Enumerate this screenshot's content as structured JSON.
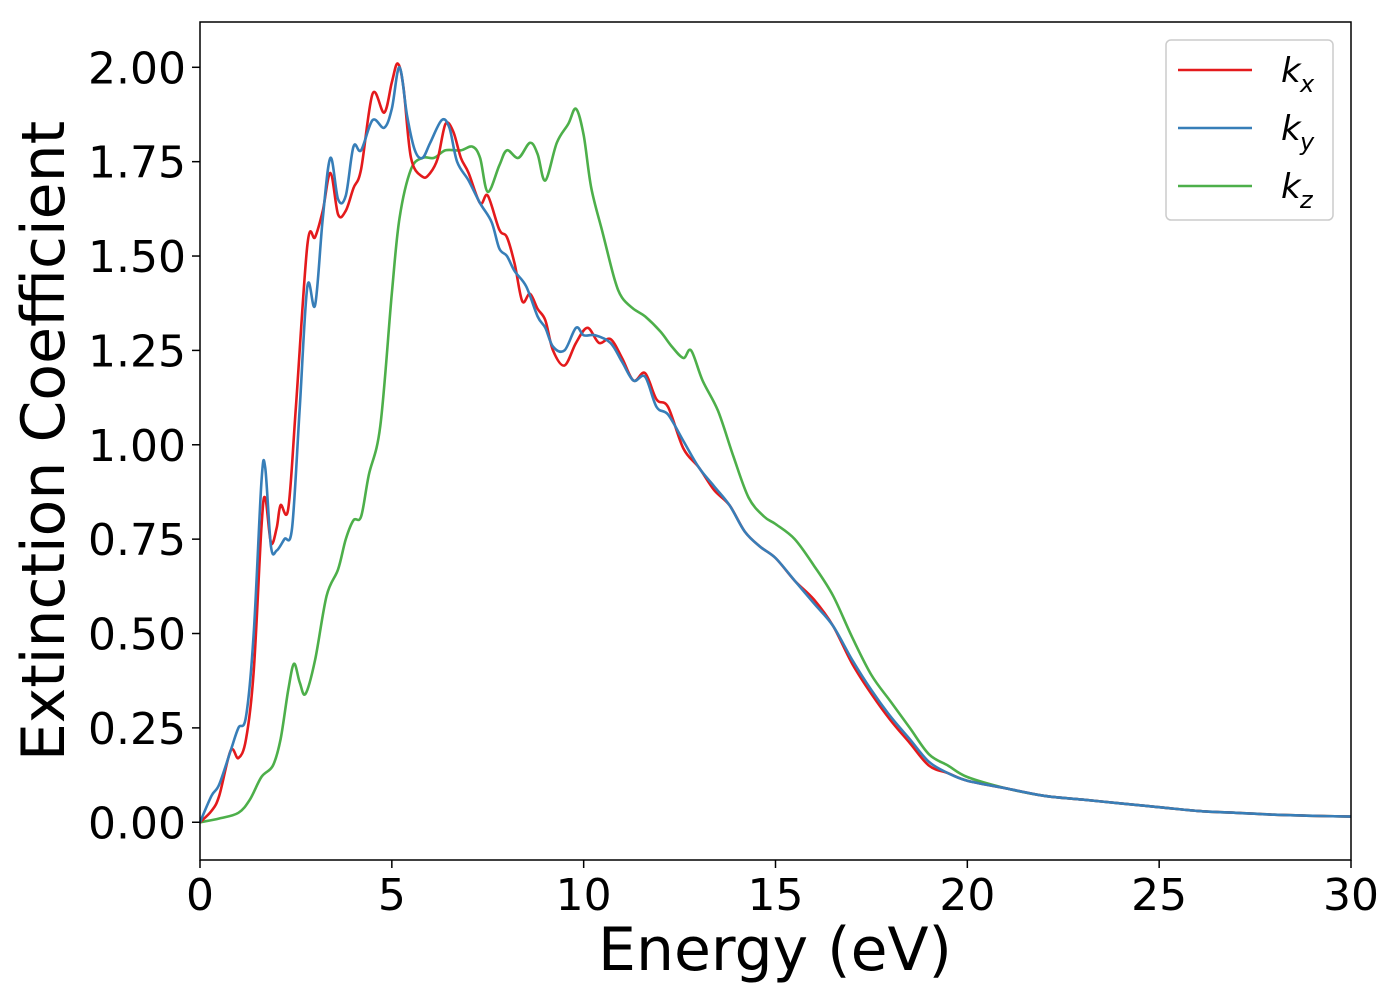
{
  "chart_data": {
    "type": "line",
    "xlabel": "Energy (eV)",
    "ylabel": "Extinction Coefficient",
    "xlim": [
      0,
      30
    ],
    "ylim": [
      -0.1,
      2.12
    ],
    "xticks": [
      0,
      5,
      10,
      15,
      20,
      25,
      30
    ],
    "xtick_labels": [
      "0",
      "5",
      "10",
      "15",
      "20",
      "25",
      "30"
    ],
    "yticks": [
      0,
      0.25,
      0.5,
      0.75,
      1.0,
      1.25,
      1.5,
      1.75,
      2.0
    ],
    "ytick_labels": [
      "0.00",
      "0.25",
      "0.50",
      "0.75",
      "1.00",
      "1.25",
      "1.50",
      "1.75",
      "2.00"
    ],
    "grid": false,
    "legend_position": "top-right",
    "series": [
      {
        "name": "k",
        "subscript": "x",
        "color": "#e41a1c",
        "points": [
          [
            0,
            0
          ],
          [
            0.3,
            0.03
          ],
          [
            0.5,
            0.07
          ],
          [
            0.8,
            0.19
          ],
          [
            1.0,
            0.17
          ],
          [
            1.2,
            0.22
          ],
          [
            1.4,
            0.4
          ],
          [
            1.6,
            0.78
          ],
          [
            1.7,
            0.86
          ],
          [
            1.85,
            0.74
          ],
          [
            2.0,
            0.78
          ],
          [
            2.1,
            0.84
          ],
          [
            2.3,
            0.83
          ],
          [
            2.5,
            1.1
          ],
          [
            2.8,
            1.53
          ],
          [
            3.0,
            1.55
          ],
          [
            3.2,
            1.62
          ],
          [
            3.4,
            1.72
          ],
          [
            3.6,
            1.61
          ],
          [
            3.8,
            1.62
          ],
          [
            4.0,
            1.68
          ],
          [
            4.2,
            1.73
          ],
          [
            4.5,
            1.93
          ],
          [
            4.8,
            1.88
          ],
          [
            5.0,
            1.96
          ],
          [
            5.15,
            2.01
          ],
          [
            5.3,
            1.95
          ],
          [
            5.5,
            1.76
          ],
          [
            5.8,
            1.71
          ],
          [
            6.0,
            1.72
          ],
          [
            6.2,
            1.76
          ],
          [
            6.4,
            1.85
          ],
          [
            6.6,
            1.83
          ],
          [
            6.8,
            1.76
          ],
          [
            7.0,
            1.72
          ],
          [
            7.3,
            1.64
          ],
          [
            7.5,
            1.66
          ],
          [
            7.8,
            1.57
          ],
          [
            8.0,
            1.55
          ],
          [
            8.2,
            1.48
          ],
          [
            8.4,
            1.38
          ],
          [
            8.6,
            1.4
          ],
          [
            8.8,
            1.36
          ],
          [
            9.0,
            1.33
          ],
          [
            9.2,
            1.25
          ],
          [
            9.5,
            1.21
          ],
          [
            9.8,
            1.27
          ],
          [
            10.1,
            1.31
          ],
          [
            10.4,
            1.27
          ],
          [
            10.7,
            1.28
          ],
          [
            11.0,
            1.23
          ],
          [
            11.3,
            1.17
          ],
          [
            11.6,
            1.19
          ],
          [
            11.9,
            1.12
          ],
          [
            12.2,
            1.1
          ],
          [
            12.6,
            0.99
          ],
          [
            13.0,
            0.94
          ],
          [
            13.4,
            0.88
          ],
          [
            13.8,
            0.84
          ],
          [
            14.2,
            0.77
          ],
          [
            14.6,
            0.73
          ],
          [
            15.0,
            0.7
          ],
          [
            15.5,
            0.64
          ],
          [
            16.0,
            0.59
          ],
          [
            16.5,
            0.52
          ],
          [
            17.0,
            0.42
          ],
          [
            17.5,
            0.34
          ],
          [
            18.0,
            0.27
          ],
          [
            18.5,
            0.21
          ],
          [
            19.0,
            0.15
          ],
          [
            19.5,
            0.13
          ],
          [
            20.0,
            0.11
          ],
          [
            21.0,
            0.09
          ],
          [
            22.0,
            0.07
          ],
          [
            23.0,
            0.06
          ],
          [
            24.0,
            0.05
          ],
          [
            25.0,
            0.04
          ],
          [
            26.0,
            0.03
          ],
          [
            27.0,
            0.025
          ],
          [
            28.0,
            0.02
          ],
          [
            29.0,
            0.017
          ],
          [
            30.0,
            0.015
          ]
        ]
      },
      {
        "name": "k",
        "subscript": "y",
        "color": "#377eb8",
        "points": [
          [
            0,
            0
          ],
          [
            0.3,
            0.07
          ],
          [
            0.5,
            0.1
          ],
          [
            0.8,
            0.19
          ],
          [
            1.0,
            0.25
          ],
          [
            1.2,
            0.28
          ],
          [
            1.4,
            0.5
          ],
          [
            1.6,
            0.9
          ],
          [
            1.7,
            0.94
          ],
          [
            1.85,
            0.73
          ],
          [
            2.0,
            0.72
          ],
          [
            2.2,
            0.75
          ],
          [
            2.4,
            0.78
          ],
          [
            2.6,
            1.1
          ],
          [
            2.8,
            1.42
          ],
          [
            3.0,
            1.37
          ],
          [
            3.2,
            1.6
          ],
          [
            3.4,
            1.76
          ],
          [
            3.6,
            1.65
          ],
          [
            3.8,
            1.66
          ],
          [
            4.0,
            1.79
          ],
          [
            4.2,
            1.78
          ],
          [
            4.5,
            1.86
          ],
          [
            4.8,
            1.84
          ],
          [
            5.0,
            1.89
          ],
          [
            5.2,
            2.0
          ],
          [
            5.4,
            1.87
          ],
          [
            5.6,
            1.78
          ],
          [
            5.8,
            1.76
          ],
          [
            6.0,
            1.8
          ],
          [
            6.3,
            1.86
          ],
          [
            6.5,
            1.84
          ],
          [
            6.7,
            1.75
          ],
          [
            7.0,
            1.7
          ],
          [
            7.3,
            1.64
          ],
          [
            7.6,
            1.59
          ],
          [
            7.8,
            1.52
          ],
          [
            8.0,
            1.5
          ],
          [
            8.2,
            1.46
          ],
          [
            8.5,
            1.42
          ],
          [
            8.8,
            1.34
          ],
          [
            9.0,
            1.31
          ],
          [
            9.2,
            1.26
          ],
          [
            9.5,
            1.25
          ],
          [
            9.8,
            1.31
          ],
          [
            10.0,
            1.29
          ],
          [
            10.3,
            1.29
          ],
          [
            10.7,
            1.27
          ],
          [
            11.0,
            1.22
          ],
          [
            11.3,
            1.17
          ],
          [
            11.6,
            1.18
          ],
          [
            11.9,
            1.1
          ],
          [
            12.2,
            1.08
          ],
          [
            12.6,
            1.01
          ],
          [
            13.0,
            0.94
          ],
          [
            13.4,
            0.89
          ],
          [
            13.8,
            0.84
          ],
          [
            14.2,
            0.77
          ],
          [
            14.6,
            0.73
          ],
          [
            15.0,
            0.7
          ],
          [
            15.5,
            0.64
          ],
          [
            16.0,
            0.58
          ],
          [
            16.5,
            0.52
          ],
          [
            17.0,
            0.43
          ],
          [
            17.5,
            0.35
          ],
          [
            18.0,
            0.28
          ],
          [
            18.5,
            0.22
          ],
          [
            19.0,
            0.16
          ],
          [
            19.5,
            0.13
          ],
          [
            20.0,
            0.11
          ],
          [
            21.0,
            0.09
          ],
          [
            22.0,
            0.07
          ],
          [
            23.0,
            0.06
          ],
          [
            24.0,
            0.05
          ],
          [
            25.0,
            0.04
          ],
          [
            26.0,
            0.03
          ],
          [
            27.0,
            0.025
          ],
          [
            28.0,
            0.02
          ],
          [
            29.0,
            0.017
          ],
          [
            30.0,
            0.015
          ]
        ]
      },
      {
        "name": "k",
        "subscript": "z",
        "color": "#4daf4a",
        "points": [
          [
            0,
            0
          ],
          [
            0.5,
            0.01
          ],
          [
            1.0,
            0.025
          ],
          [
            1.3,
            0.06
          ],
          [
            1.6,
            0.12
          ],
          [
            1.9,
            0.15
          ],
          [
            2.1,
            0.22
          ],
          [
            2.3,
            0.35
          ],
          [
            2.45,
            0.42
          ],
          [
            2.6,
            0.37
          ],
          [
            2.75,
            0.34
          ],
          [
            3.0,
            0.43
          ],
          [
            3.3,
            0.6
          ],
          [
            3.6,
            0.67
          ],
          [
            3.8,
            0.75
          ],
          [
            4.0,
            0.8
          ],
          [
            4.2,
            0.81
          ],
          [
            4.4,
            0.92
          ],
          [
            4.7,
            1.05
          ],
          [
            5.0,
            1.4
          ],
          [
            5.2,
            1.6
          ],
          [
            5.5,
            1.73
          ],
          [
            5.8,
            1.76
          ],
          [
            6.1,
            1.76
          ],
          [
            6.4,
            1.78
          ],
          [
            6.8,
            1.78
          ],
          [
            7.1,
            1.79
          ],
          [
            7.3,
            1.76
          ],
          [
            7.5,
            1.67
          ],
          [
            7.8,
            1.74
          ],
          [
            8.0,
            1.78
          ],
          [
            8.3,
            1.76
          ],
          [
            8.6,
            1.8
          ],
          [
            8.8,
            1.77
          ],
          [
            9.0,
            1.7
          ],
          [
            9.3,
            1.8
          ],
          [
            9.6,
            1.85
          ],
          [
            9.8,
            1.89
          ],
          [
            10.0,
            1.82
          ],
          [
            10.2,
            1.68
          ],
          [
            10.5,
            1.56
          ],
          [
            10.8,
            1.44
          ],
          [
            11.0,
            1.39
          ],
          [
            11.3,
            1.36
          ],
          [
            11.6,
            1.34
          ],
          [
            12.0,
            1.3
          ],
          [
            12.3,
            1.26
          ],
          [
            12.6,
            1.23
          ],
          [
            12.8,
            1.25
          ],
          [
            13.1,
            1.17
          ],
          [
            13.5,
            1.09
          ],
          [
            13.9,
            0.97
          ],
          [
            14.3,
            0.86
          ],
          [
            14.7,
            0.81
          ],
          [
            15.0,
            0.79
          ],
          [
            15.5,
            0.75
          ],
          [
            16.0,
            0.68
          ],
          [
            16.5,
            0.6
          ],
          [
            17.0,
            0.49
          ],
          [
            17.5,
            0.39
          ],
          [
            18.0,
            0.32
          ],
          [
            18.5,
            0.25
          ],
          [
            19.0,
            0.18
          ],
          [
            19.5,
            0.15
          ],
          [
            20.0,
            0.12
          ],
          [
            21.0,
            0.09
          ],
          [
            22.0,
            0.07
          ],
          [
            23.0,
            0.06
          ],
          [
            24.0,
            0.05
          ],
          [
            25.0,
            0.04
          ],
          [
            26.0,
            0.03
          ],
          [
            27.0,
            0.025
          ],
          [
            28.0,
            0.02
          ],
          [
            29.0,
            0.017
          ],
          [
            30.0,
            0.015
          ]
        ]
      }
    ]
  }
}
